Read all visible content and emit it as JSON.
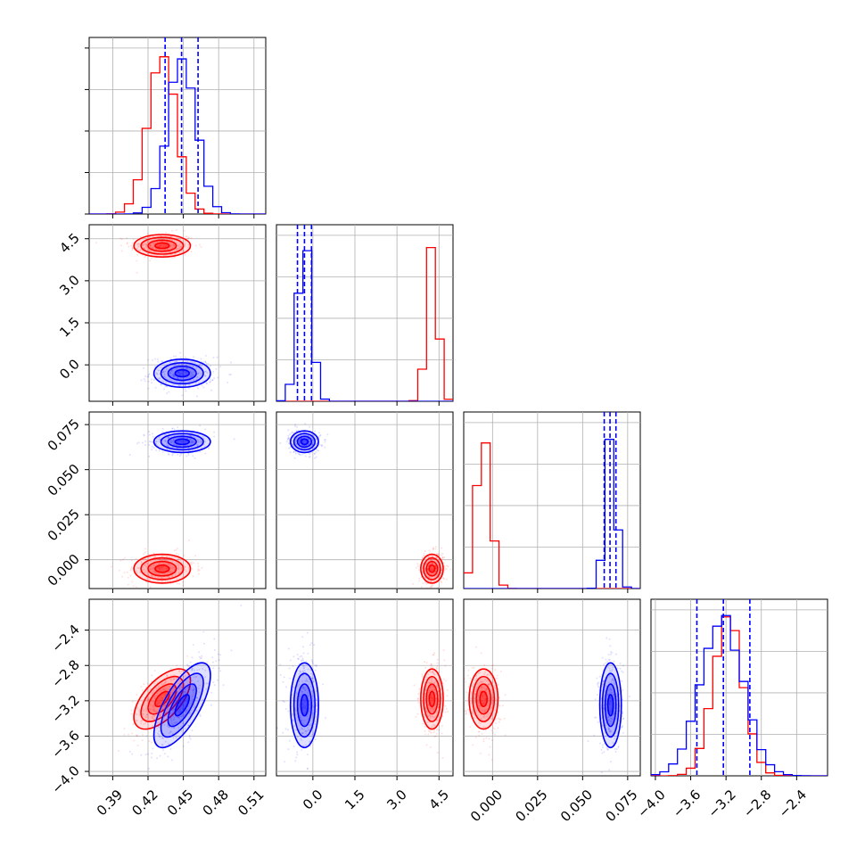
{
  "chart_data": {
    "type": "corner",
    "n_params": 4,
    "grid": true,
    "colors": {
      "red": "#ff0000",
      "blue": "#0000ff",
      "frame": "#000000",
      "grid": "#b0b0b0"
    },
    "params": [
      {
        "range": [
          0.37,
          0.52
        ],
        "ticks": [
          "0.39",
          "0.42",
          "0.45",
          "0.48",
          "0.51"
        ],
        "tick_values": [
          0.39,
          0.42,
          0.45,
          0.48,
          0.51
        ]
      },
      {
        "range": [
          -1.3,
          5.0
        ],
        "ticks": [
          "0.0",
          "1.5",
          "3.0",
          "4.5"
        ],
        "tick_values": [
          0.0,
          1.5,
          3.0,
          4.5
        ]
      },
      {
        "range": [
          -0.016,
          0.082
        ],
        "ticks": [
          "0.000",
          "0.025",
          "0.050",
          "0.075"
        ],
        "tick_values": [
          0.0,
          0.025,
          0.05,
          0.075
        ]
      },
      {
        "range": [
          -4.05,
          -2.05
        ],
        "ticks": [
          "−4.0",
          "−3.6",
          "−3.2",
          "−2.8",
          "−2.4"
        ],
        "tick_values": [
          -4.0,
          -3.6,
          -3.2,
          -2.8,
          -2.4
        ]
      }
    ],
    "quantiles_blue": [
      [
        0.4345,
        0.4485,
        0.4625
      ],
      [
        -0.55,
        -0.3,
        -0.05
      ],
      [
        0.062,
        0.0652,
        0.0685
      ],
      [
        -3.53,
        -3.23,
        -2.93
      ]
    ],
    "samples": {
      "red": {
        "mean": [
          0.432,
          4.25,
          -0.005,
          -3.18
        ],
        "sd": [
          0.012,
          0.2,
          0.004,
          0.17
        ]
      },
      "blue": {
        "mean": [
          0.449,
          -0.3,
          0.0655,
          -3.25
        ],
        "sd": [
          0.012,
          0.25,
          0.003,
          0.24
        ]
      }
    },
    "correlation_note": "param1 vs param4 positively correlated in both chains",
    "corr_14": {
      "red": 0.6,
      "blue": 0.7
    }
  }
}
